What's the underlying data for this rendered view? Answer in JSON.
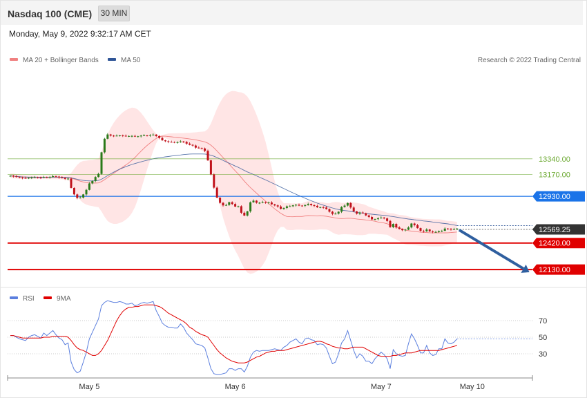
{
  "header": {
    "title": "Nasdaq 100 (CME)",
    "interval_button": "30 MIN",
    "datetime": "Monday, May 9, 2022 9:32:17 AM CET"
  },
  "legend": {
    "ma20": {
      "label": "MA 20 + Bollinger Bands",
      "color": "#f08080"
    },
    "ma50": {
      "label": "MA 50",
      "color": "#2f5597"
    },
    "rsi": {
      "label": "RSI",
      "color": "#5b7fde"
    },
    "ma9": {
      "label": "9MA",
      "color": "#e00000"
    }
  },
  "credit": "Research © 2022 Trading Central",
  "chart_data": {
    "type": "candlestick",
    "y_range": [
      11950,
      14350
    ],
    "x_labels": [
      {
        "label": "May 5",
        "index": 26
      },
      {
        "label": "May 6",
        "index": 74
      },
      {
        "label": "May 7",
        "index": 122
      },
      {
        "label": "May 10",
        "index": 152
      }
    ],
    "levels": [
      {
        "label": "13340.00",
        "value": 13340,
        "kind": "resistance",
        "color": "#6aa82f"
      },
      {
        "label": "13170.00",
        "value": 13170,
        "kind": "resistance",
        "color": "#6aa82f"
      },
      {
        "label": "12930.00",
        "value": 12930,
        "kind": "pivot",
        "color": "#1a73e8"
      },
      {
        "label": "12569.25",
        "value": 12569.25,
        "kind": "last",
        "color": "#333333"
      },
      {
        "label": "12420.00",
        "value": 12420,
        "kind": "support",
        "color": "#e00000"
      },
      {
        "label": "12130.00",
        "value": 12130,
        "kind": "support",
        "color": "#e00000"
      }
    ],
    "closes": [
      13154,
      13149,
      13141,
      13136,
      13131,
      13129,
      13133,
      13136,
      13138,
      13135,
      13133,
      13140,
      13137,
      13142,
      13151,
      13146,
      13136,
      13131,
      13120,
      13124,
      13022,
      12951,
      12912,
      12917,
      12951,
      13001,
      13071,
      13098,
      13141,
      13175,
      13411,
      13559,
      13606,
      13593,
      13591,
      13593,
      13595,
      13592,
      13587,
      13589,
      13590,
      13583,
      13586,
      13593,
      13596,
      13593,
      13599,
      13604,
      13588,
      13568,
      13542,
      13532,
      13525,
      13524,
      13520,
      13521,
      13529,
      13524,
      13506,
      13493,
      13485,
      13462,
      13458,
      13453,
      13427,
      13323,
      13169,
      13025,
      12916,
      12859,
      12831,
      12836,
      12866,
      12847,
      12818,
      12822,
      12751,
      12720,
      12766,
      12865,
      12883,
      12860,
      12860,
      12868,
      12859,
      12863,
      12843,
      12831,
      12819,
      12793,
      12803,
      12821,
      12822,
      12832,
      12838,
      12829,
      12826,
      12834,
      12847,
      12833,
      12826,
      12810,
      12812,
      12808,
      12791,
      12762,
      12738,
      12741,
      12762,
      12813,
      12829,
      12857,
      12808,
      12765,
      12740,
      12753,
      12746,
      12722,
      12705,
      12678,
      12681,
      12691,
      12698,
      12689,
      12661,
      12593,
      12629,
      12590,
      12574,
      12560,
      12566,
      12590,
      12633,
      12615,
      12583,
      12554,
      12548,
      12568,
      12548,
      12540,
      12541,
      12552,
      12554,
      12578,
      12574,
      12569,
      12572,
      12578
    ],
    "ma50": [
      13154,
      13151,
      13148,
      13145,
      13142,
      13141,
      13140,
      13140,
      13140,
      13139,
      13139,
      13139,
      13139,
      13139,
      13140,
      13140,
      13139,
      13139,
      13138,
      13137,
      13132,
      13125,
      13117,
      13110,
      13104,
      13100,
      13099,
      13099,
      13100,
      13104,
      13117,
      13136,
      13157,
      13176,
      13194,
      13211,
      13227,
      13241,
      13254,
      13266,
      13278,
      13288,
      13298,
      13307,
      13316,
      13324,
      13332,
      13340,
      13346,
      13351,
      13356,
      13361,
      13365,
      13370,
      13374,
      13378,
      13382,
      13386,
      13389,
      13392,
      13393,
      13393,
      13393,
      13393,
      13392,
      13387,
      13379,
      13368,
      13354,
      13339,
      13323,
      13307,
      13292,
      13277,
      13261,
      13247,
      13230,
      13213,
      13197,
      13183,
      13169,
      13154,
      13139,
      13124,
      13109,
      13094,
      13078,
      13063,
      13047,
      13031,
      13015,
      12999,
      12983,
      12968,
      12953,
      12938,
      12924,
      12909,
      12895,
      12882,
      12869,
      12856,
      12845,
      12834,
      12823,
      12813,
      12803,
      12794,
      12786,
      12780,
      12775,
      12771,
      12765,
      12760,
      12755,
      12751,
      12747,
      12743,
      12739,
      12735,
      12731,
      12728,
      12725,
      12722,
      12719,
      12713,
      12709,
      12703,
      12698,
      12692,
      12687,
      12682,
      12678,
      12674,
      12670,
      12666,
      12661,
      12658,
      12654,
      12650,
      12646,
      12641,
      12637,
      12633,
      12629,
      12623,
      12617,
      12611
    ],
    "ma20": [
      13154,
      13152,
      13148,
      13145,
      13142,
      13140,
      13139,
      13139,
      13139,
      13138,
      13138,
      13138,
      13138,
      13138,
      13139,
      13139,
      13139,
      13138,
      13137,
      13137,
      13130,
      13119,
      13107,
      13096,
      13087,
      13080,
      13077,
      13075,
      13075,
      13077,
      13091,
      13112,
      13135,
      13158,
      13181,
      13204,
      13227,
      13250,
      13273,
      13296,
      13324,
      13354,
      13389,
      13423,
      13456,
      13486,
      13513,
      13539,
      13562,
      13581,
      13588,
      13587,
      13583,
      13580,
      13576,
      13573,
      13570,
      13566,
      13562,
      13557,
      13552,
      13547,
      13540,
      13533,
      13525,
      13511,
      13489,
      13460,
      13426,
      13390,
      13353,
      13318,
      13282,
      13244,
      13209,
      13174,
      13136,
      13096,
      13059,
      13026,
      12995,
      12965,
      12935,
      12906,
      12877,
      12850,
      12822,
      12794,
      12769,
      12744,
      12725,
      12710,
      12708,
      12707,
      12710,
      12710,
      12710,
      12716,
      12720,
      12719,
      12718,
      12717,
      12719,
      12716,
      12712,
      12706,
      12700,
      12694,
      12689,
      12687,
      12688,
      12691,
      12690,
      12687,
      12683,
      12679,
      12676,
      12672,
      12669,
      12664,
      12658,
      12650,
      12645,
      12639,
      12631,
      12619,
      12609,
      12596,
      12584,
      12572,
      12562,
      12555,
      12551,
      12547,
      12543,
      12539,
      12536,
      12534,
      12532,
      12531,
      12531,
      12531,
      12530,
      12531,
      12532,
      12534,
      12537,
      12540
    ],
    "bb_upper": [
      13180,
      13178,
      13172,
      13168,
      13164,
      13160,
      13159,
      13158,
      13158,
      13156,
      13156,
      13157,
      13157,
      13158,
      13160,
      13161,
      13161,
      13160,
      13163,
      13163,
      13186,
      13232,
      13274,
      13303,
      13317,
      13320,
      13325,
      13327,
      13334,
      13343,
      13418,
      13516,
      13608,
      13677,
      13733,
      13779,
      13816,
      13847,
      13871,
      13888,
      13899,
      13895,
      13876,
      13843,
      13799,
      13749,
      13700,
      13652,
      13615,
      13594,
      13600,
      13609,
      13616,
      13618,
      13619,
      13620,
      13621,
      13621,
      13623,
      13624,
      13627,
      13629,
      13634,
      13636,
      13640,
      13665,
      13724,
      13805,
      13888,
      13954,
      14010,
      14047,
      14070,
      14081,
      14079,
      14070,
      14065,
      14051,
      14020,
      13969,
      13900,
      13822,
      13734,
      13635,
      13524,
      13389,
      13244,
      13095,
      12978,
      12892,
      12855,
      12856,
      12855,
      12853,
      12854,
      12854,
      12854,
      12869,
      12878,
      12876,
      12873,
      12869,
      12868,
      12864,
      12856,
      12855,
      12865,
      12869,
      12867,
      12859,
      12859,
      12867,
      12866,
      12863,
      12859,
      12852,
      12845,
      12834,
      12817,
      12806,
      12795,
      12783,
      12774,
      12765,
      12752,
      12746,
      12744,
      12735,
      12727,
      12725,
      12720,
      12710,
      12702,
      12697,
      12693,
      12687,
      12683,
      12682,
      12680,
      12679,
      12678,
      12678,
      12675,
      12668,
      12662,
      12660,
      12656,
      12652
    ],
    "bb_lower": [
      13128,
      13126,
      13124,
      13122,
      13120,
      13120,
      13119,
      13120,
      13120,
      13120,
      13120,
      13119,
      13119,
      13118,
      13118,
      13117,
      13117,
      13116,
      13111,
      13111,
      13074,
      13006,
      12940,
      12889,
      12857,
      12840,
      12829,
      12823,
      12816,
      12811,
      12764,
      12708,
      12662,
      12639,
      12629,
      12629,
      12638,
      12653,
      12675,
      12704,
      12749,
      12813,
      12902,
      13003,
      13113,
      13223,
      13326,
      13426,
      13509,
      13568,
      13576,
      13565,
      13550,
      13542,
      13533,
      13526,
      13519,
      13511,
      13501,
      13490,
      13477,
      13465,
      13446,
      13430,
      13410,
      13357,
      13254,
      13115,
      12964,
      12826,
      12696,
      12589,
      12494,
      12407,
      12339,
      12278,
      12207,
      12141,
      12098,
      12083,
      12090,
      12108,
      12136,
      12177,
      12230,
      12311,
      12400,
      12493,
      12560,
      12596,
      12595,
      12564,
      12561,
      12561,
      12566,
      12566,
      12566,
      12563,
      12562,
      12562,
      12563,
      12565,
      12570,
      12568,
      12568,
      12557,
      12535,
      12519,
      12511,
      12515,
      12517,
      12515,
      12514,
      12511,
      12507,
      12506,
      12507,
      12510,
      12521,
      12522,
      12521,
      12517,
      12516,
      12513,
      12510,
      12492,
      12474,
      12457,
      12441,
      12419,
      12404,
      12400,
      12400,
      12397,
      12393,
      12391,
      12389,
      12386,
      12384,
      12383,
      12384,
      12384,
      12385,
      12394,
      12402,
      12408,
      12418,
      12428
    ]
  },
  "rsi_data": {
    "range": [
      0,
      100
    ],
    "ticks": [
      {
        "label": "70",
        "value": 70
      },
      {
        "label": "50",
        "value": 50
      },
      {
        "label": "30",
        "value": 30
      }
    ],
    "rsi": [
      52,
      52,
      50,
      48,
      47,
      46,
      50,
      52,
      53,
      51,
      49,
      55,
      52,
      55,
      58,
      53,
      49,
      47,
      41,
      43,
      20,
      11,
      7,
      9,
      20,
      32,
      48,
      56,
      64,
      72,
      88,
      92,
      94,
      93,
      92,
      92,
      93,
      92,
      90,
      90,
      91,
      88,
      89,
      91,
      92,
      91,
      92,
      93,
      82,
      75,
      67,
      64,
      62,
      62,
      61,
      61,
      66,
      62,
      55,
      51,
      47,
      42,
      41,
      40,
      37,
      25,
      12,
      6,
      5,
      5,
      6,
      7,
      12,
      12,
      10,
      12,
      12,
      8,
      15,
      26,
      32,
      34,
      33,
      34,
      34,
      34,
      35,
      36,
      35,
      34,
      38,
      40,
      44,
      46,
      48,
      44,
      42,
      48,
      49,
      47,
      46,
      41,
      42,
      41,
      37,
      27,
      18,
      20,
      30,
      43,
      48,
      58,
      46,
      34,
      25,
      30,
      27,
      21,
      21,
      18,
      24,
      28,
      32,
      29,
      24,
      12,
      35,
      30,
      28,
      27,
      28,
      42,
      54,
      48,
      40,
      31,
      31,
      40,
      31,
      28,
      29,
      36,
      36,
      48,
      43,
      42,
      44,
      48
    ],
    "ma9": [
      52,
      52,
      51,
      50,
      49,
      49,
      49,
      49,
      49,
      49,
      49,
      50,
      50,
      50,
      51,
      51,
      51,
      51,
      51,
      50,
      46,
      41,
      37,
      35,
      34,
      32,
      30,
      28,
      28,
      30,
      34,
      40,
      46,
      54,
      62,
      70,
      76,
      81,
      84,
      86,
      86,
      87,
      87,
      88,
      89,
      89,
      89,
      89,
      88,
      87,
      85,
      82,
      79,
      77,
      75,
      73,
      71,
      69,
      66,
      62,
      60,
      57,
      55,
      53,
      52,
      50,
      45,
      40,
      35,
      31,
      28,
      25,
      23,
      21,
      20,
      19,
      19,
      19,
      20,
      22,
      24,
      26,
      27,
      29,
      31,
      32,
      33,
      33,
      34,
      34,
      34,
      35,
      36,
      37,
      38,
      39,
      40,
      41,
      42,
      43,
      44,
      45,
      45,
      44,
      42,
      41,
      39,
      38,
      37,
      37,
      36,
      36,
      37,
      38,
      38,
      38,
      38,
      36,
      34,
      32,
      30,
      28,
      27,
      27,
      27,
      27,
      28,
      28,
      29,
      30,
      31,
      31,
      31,
      32,
      33,
      34,
      34,
      34,
      34,
      34,
      34,
      34,
      35,
      36,
      37,
      38,
      39,
      40
    ]
  }
}
